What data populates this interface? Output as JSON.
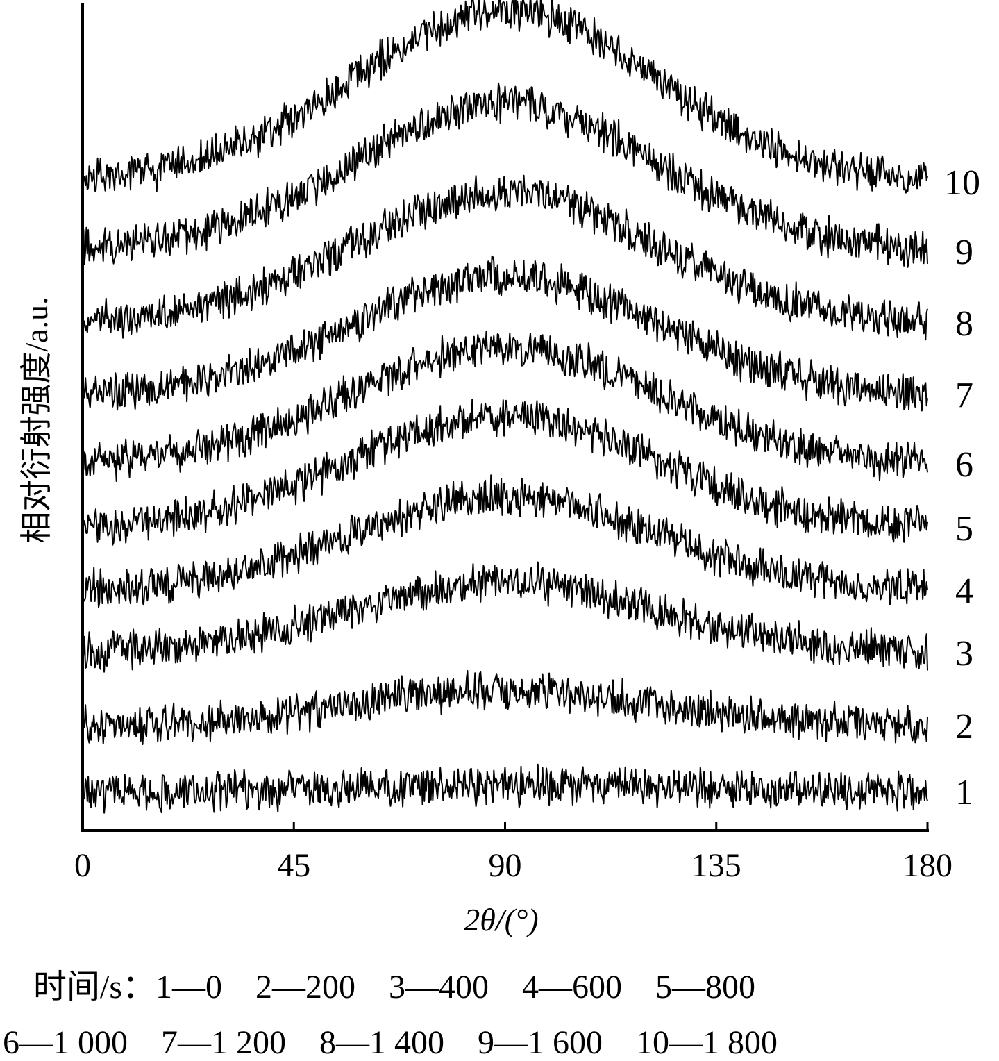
{
  "chart_data": {
    "type": "line",
    "xlabel": "2θ/(°)",
    "ylabel": "相对衍射强度/a.u.",
    "xlim": [
      0,
      180
    ],
    "x_ticks": [
      "0",
      "45",
      "90",
      "135",
      "180"
    ],
    "grid": false,
    "series": [
      {
        "name": "1",
        "peak_center": 90,
        "peak_height": 0.05
      },
      {
        "name": "2",
        "peak_center": 90,
        "peak_height": 0.3
      },
      {
        "name": "3",
        "peak_center": 90,
        "peak_height": 0.6
      },
      {
        "name": "4",
        "peak_center": 90,
        "peak_height": 0.8
      },
      {
        "name": "5",
        "peak_center": 90,
        "peak_height": 0.95
      },
      {
        "name": "6",
        "peak_center": 90,
        "peak_height": 1.0
      },
      {
        "name": "7",
        "peak_center": 90,
        "peak_height": 1.0
      },
      {
        "name": "8",
        "peak_center": 90,
        "peak_height": 1.1
      },
      {
        "name": "9",
        "peak_center": 90,
        "peak_height": 1.25
      },
      {
        "name": "10",
        "peak_center": 90,
        "peak_height": 1.45
      }
    ]
  },
  "legend": {
    "line1": "时间/s：1—0    2—200    3—400    4—600    5—800",
    "line2": "6—1 000    7—1 200    8—1 400    9—1 600    10—1 800"
  }
}
